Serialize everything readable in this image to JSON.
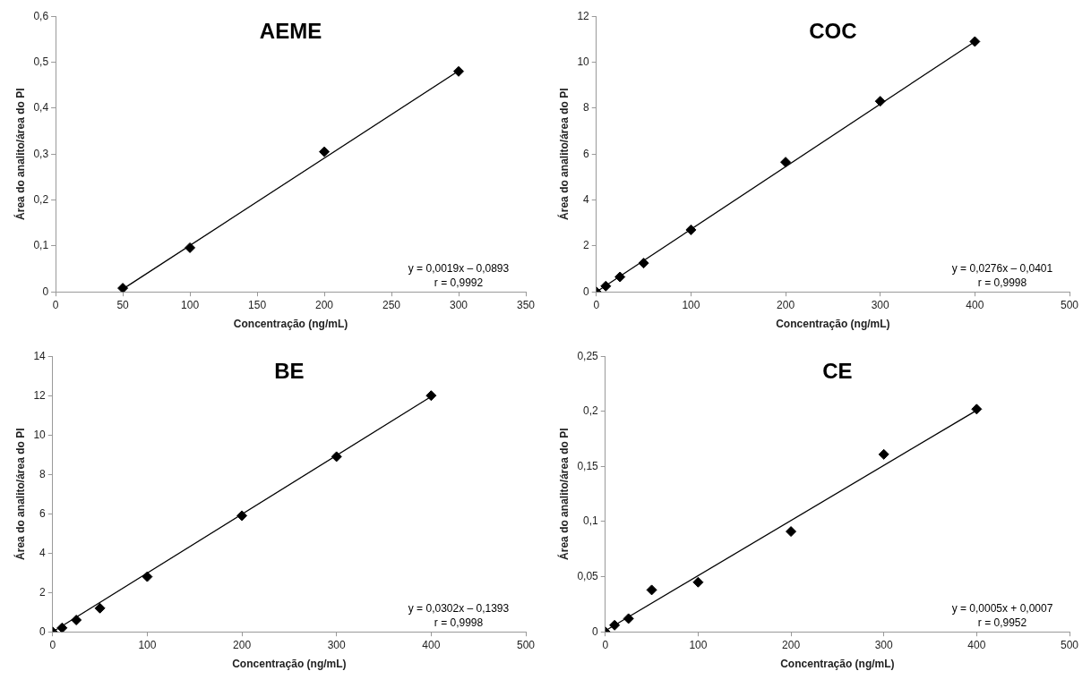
{
  "chart_data": [
    {
      "type": "scatter",
      "title": "AEME",
      "xlabel": "Concentração (ng/mL)",
      "ylabel": "Área do analito/área do PI",
      "xlim": [
        0,
        350
      ],
      "xticks": [
        0,
        50,
        100,
        150,
        200,
        250,
        300,
        350
      ],
      "ylim": [
        0,
        0.6
      ],
      "yticks": [
        0,
        {
          "value": 0.1,
          "label": "0,1"
        },
        {
          "value": 0.2,
          "label": "0,2"
        },
        {
          "value": 0.3,
          "label": "0,3"
        },
        {
          "value": 0.4,
          "label": "0,4"
        },
        {
          "value": 0.5,
          "label": "0,5"
        },
        {
          "value": 0.6,
          "label": "0,6"
        }
      ],
      "series": [
        {
          "color": "#000000",
          "marker": "diamond",
          "x": [
            50,
            100,
            200,
            300
          ],
          "values": [
            0.008,
            0.096,
            0.305,
            0.48
          ]
        },
        {
          "type": "line",
          "marker": "none",
          "color": "#000000",
          "x": [
            50,
            300
          ],
          "values": [
            0.006,
            0.481
          ]
        }
      ],
      "annotations": [
        "y = 0,0019x – 0,0893",
        "r = 0,9992"
      ]
    },
    {
      "type": "scatter",
      "title": "COC",
      "xlabel": "Concentração (ng/mL)",
      "ylabel": "Área do analito/área do PI",
      "xlim": [
        0,
        500
      ],
      "xticks": [
        0,
        100,
        200,
        300,
        400,
        500
      ],
      "ylim": [
        0,
        12
      ],
      "yticks": [
        0,
        2,
        4,
        6,
        8,
        10,
        12
      ],
      "series": [
        {
          "color": "#000000",
          "marker": "diamond",
          "x": [
            0,
            10,
            25,
            50,
            100,
            200,
            300,
            400
          ],
          "values": [
            0,
            0.25,
            0.65,
            1.25,
            2.7,
            5.65,
            8.3,
            10.9
          ]
        },
        {
          "type": "line",
          "marker": "none",
          "color": "#000000",
          "x": [
            0,
            400
          ],
          "values": [
            0,
            10.9
          ]
        }
      ],
      "annotations": [
        "y = 0,0276x – 0,0401",
        "r = 0,9998"
      ]
    },
    {
      "type": "scatter",
      "title": "BE",
      "xlabel": "Concentração (ng/mL)",
      "ylabel": "Área do analito/área do PI",
      "xlim": [
        0,
        500
      ],
      "xticks": [
        0,
        100,
        200,
        300,
        400,
        500
      ],
      "ylim": [
        0,
        14
      ],
      "yticks": [
        0,
        2,
        4,
        6,
        8,
        10,
        12,
        14
      ],
      "series": [
        {
          "color": "#000000",
          "marker": "diamond",
          "x": [
            0,
            10,
            25,
            50,
            100,
            200,
            300,
            400
          ],
          "values": [
            0,
            0.2,
            0.6,
            1.2,
            2.8,
            5.9,
            8.9,
            12.0
          ]
        },
        {
          "type": "line",
          "marker": "none",
          "color": "#000000",
          "x": [
            0,
            400
          ],
          "values": [
            0,
            11.95
          ]
        }
      ],
      "annotations": [
        "y = 0,0302x – 0,1393",
        "r = 0,9998"
      ]
    },
    {
      "type": "scatter",
      "title": "CE",
      "xlabel": "Concentração (ng/mL)",
      "ylabel": "Área do analito/área do PI",
      "xlim": [
        0,
        500
      ],
      "xticks": [
        0,
        100,
        200,
        300,
        400,
        500
      ],
      "ylim": [
        0,
        0.25
      ],
      "yticks": [
        0,
        {
          "value": 0.05,
          "label": "0,05"
        },
        {
          "value": 0.1,
          "label": "0,1"
        },
        {
          "value": 0.15,
          "label": "0,15"
        },
        {
          "value": 0.2,
          "label": "0,2"
        },
        {
          "value": 0.25,
          "label": "0,25"
        }
      ],
      "series": [
        {
          "color": "#000000",
          "marker": "diamond",
          "x": [
            0,
            10,
            25,
            50,
            100,
            200,
            300,
            400
          ],
          "values": [
            0,
            0.006,
            0.012,
            0.038,
            0.045,
            0.091,
            0.161,
            0.202
          ]
        },
        {
          "type": "line",
          "marker": "none",
          "color": "#000000",
          "x": [
            0,
            400
          ],
          "values": [
            0.001,
            0.201
          ]
        }
      ],
      "annotations": [
        "y = 0,0005x + 0,0007",
        "r = 0,9952"
      ]
    }
  ]
}
